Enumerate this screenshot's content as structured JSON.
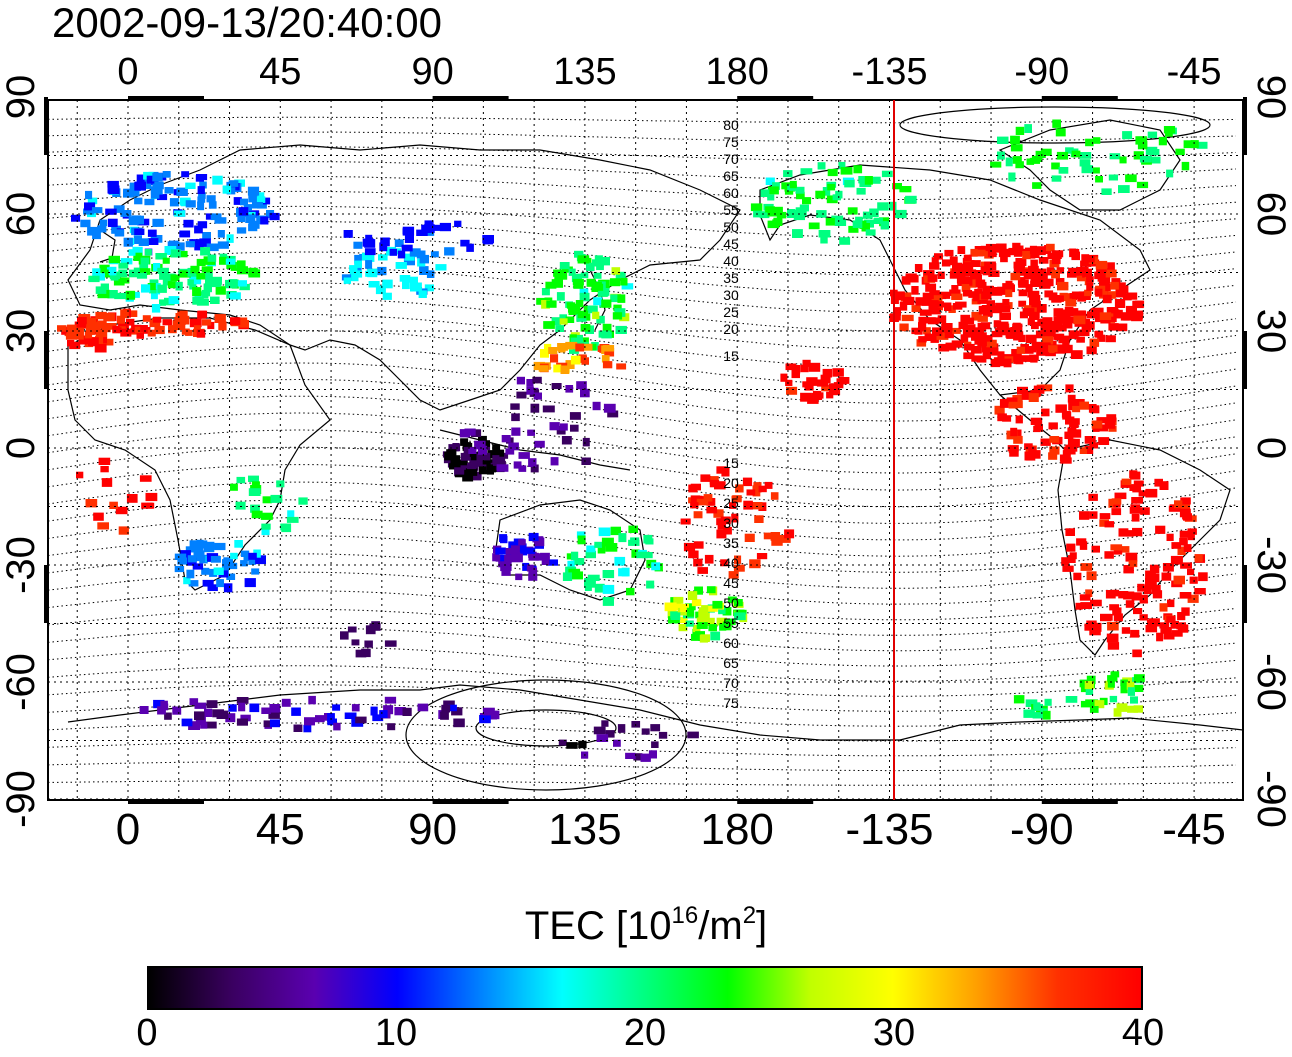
{
  "title": "2002-09-13/20:40:00",
  "map": {
    "lon_ticks": [
      "0",
      "45",
      "90",
      "135",
      "180",
      "-135",
      "-90",
      "-45"
    ],
    "lat_ticks": [
      "90",
      "60",
      "30",
      "0",
      "-30",
      "-60",
      "-90"
    ],
    "terminator_color": "#e00000",
    "sza_labels_dayside": [
      "80",
      "75",
      "70",
      "65",
      "60",
      "55",
      "50",
      "45",
      "40",
      "35",
      "30",
      "25",
      "20",
      "15"
    ],
    "sza_labels_south": [
      "15",
      "20",
      "25",
      "30",
      "35",
      "40",
      "45",
      "50",
      "55",
      "60",
      "65",
      "70",
      "75"
    ]
  },
  "colorbar": {
    "title_prefix": "TEC  [10",
    "title_exp1": "16",
    "title_mid": "/m",
    "title_exp2": "2",
    "title_suffix": "]",
    "ticks": [
      "0",
      "10",
      "20",
      "30",
      "40"
    ],
    "colors": [
      "#000000",
      "#3a0060",
      "#5a00b0",
      "#0000ff",
      "#0080ff",
      "#00ffff",
      "#00ff80",
      "#00ff00",
      "#c0ff00",
      "#ffff00",
      "#ffa000",
      "#ff3000",
      "#ff0000"
    ]
  }
}
